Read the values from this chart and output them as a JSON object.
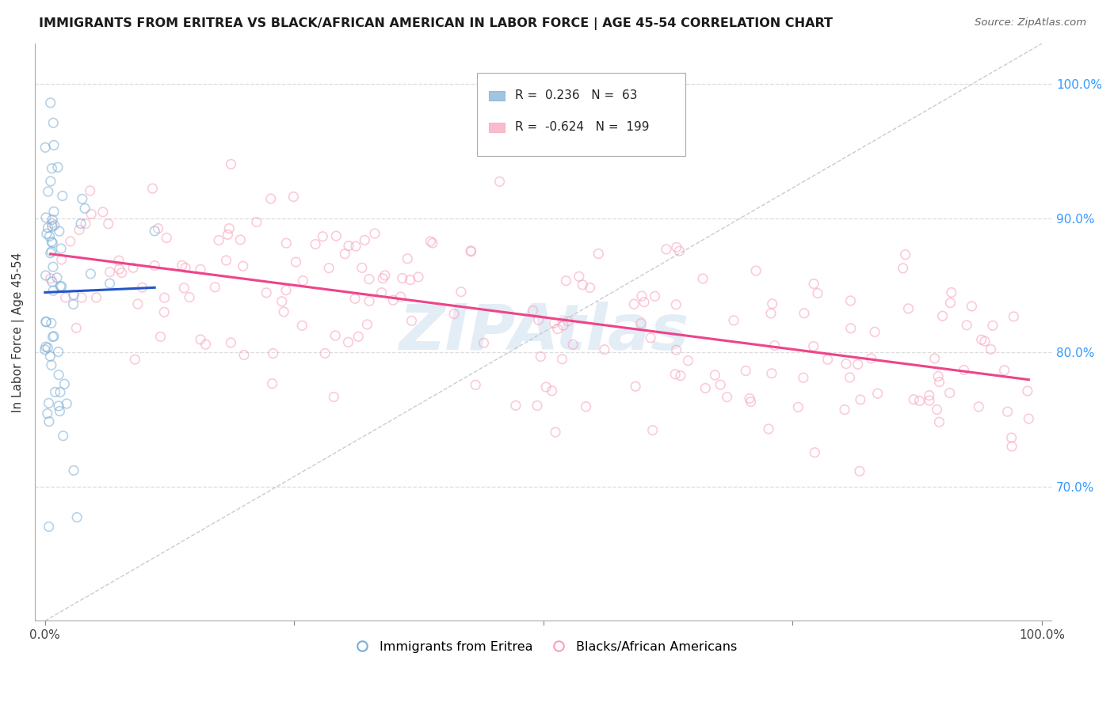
{
  "title": "IMMIGRANTS FROM ERITREA VS BLACK/AFRICAN AMERICAN IN LABOR FORCE | AGE 45-54 CORRELATION CHART",
  "source": "Source: ZipAtlas.com",
  "ylabel": "In Labor Force | Age 45-54",
  "legend_labels": [
    "Immigrants from Eritrea",
    "Blacks/African Americans"
  ],
  "R_blue": 0.236,
  "N_blue": 63,
  "R_pink": -0.624,
  "N_pink": 199,
  "blue_color": "#7aadd4",
  "pink_color": "#f9a0b8",
  "trend_blue_color": "#2255cc",
  "trend_pink_color": "#ee4488",
  "watermark": "ZIPAtlas",
  "watermark_color": "#b0cce8",
  "xlim": [
    0.0,
    1.0
  ],
  "ylim": [
    0.6,
    1.03
  ],
  "yticks": [
    0.7,
    0.8,
    0.9,
    1.0
  ],
  "ytick_labels": [
    "70.0%",
    "80.0%",
    "90.0%",
    "100.0%"
  ],
  "xtick_labels_show": [
    "0.0%",
    "100.0%"
  ],
  "grid_color": "#dddddd",
  "ref_line_color": "#c0c8d0",
  "marker_size": 70,
  "marker_alpha": 0.55,
  "marker_linewidth": 1.2,
  "trend_linewidth": 2.2
}
